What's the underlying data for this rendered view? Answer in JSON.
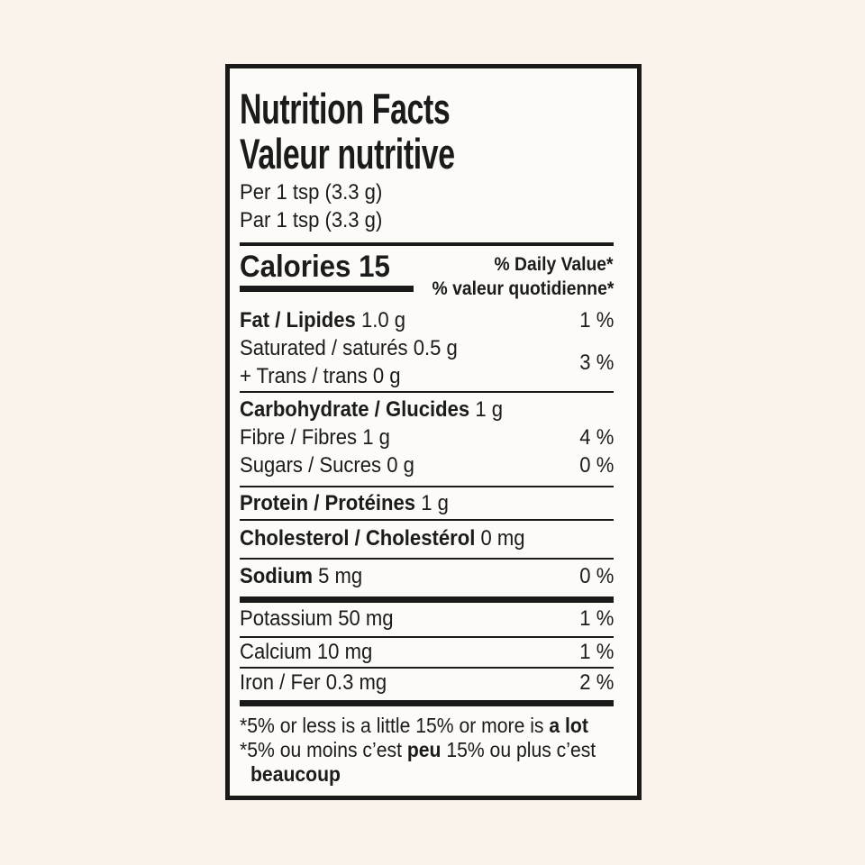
{
  "colors": {
    "page_background": "#faf3ec",
    "label_background": "#fcfbf7",
    "ink": "#1a1a1a"
  },
  "header": {
    "title_en": "Nutrition Facts",
    "title_fr": "Valeur nutritive",
    "serving_en": "Per 1 tsp (3.3 g)",
    "serving_fr": "Par 1 tsp (3.3 g)"
  },
  "calories": {
    "label": "Calories 15",
    "dv_header_en": "% Daily Value*",
    "dv_header_fr": "% valeur quotidienne*"
  },
  "rows": [
    {
      "bold": "Fat / Lipides",
      "rest": " 1.0 g",
      "dv": "1 %"
    },
    {
      "line1": "Saturated / saturés 0.5 g",
      "line2": "+ Trans / trans 0 g",
      "dv": "3 %"
    },
    {
      "bold": "Carbohydrate / Glucides",
      "rest": " 1 g",
      "dv": ""
    },
    {
      "bold": "",
      "rest": "Fibre / Fibres 1 g",
      "dv": "4 %"
    },
    {
      "bold": "",
      "rest": "Sugars / Sucres 0 g",
      "dv": "0 %"
    },
    {
      "bold": "Protein / Protéines",
      "rest": " 1 g",
      "dv": ""
    },
    {
      "bold": "Cholesterol / Cholestérol",
      "rest": " 0 mg",
      "dv": ""
    },
    {
      "bold": "Sodium",
      "rest": " 5 mg",
      "dv": "0 %"
    },
    {
      "bold": "",
      "rest": "Potassium 50 mg",
      "dv": "1 %"
    },
    {
      "bold": "",
      "rest": "Calcium 10 mg",
      "dv": "1 %"
    },
    {
      "bold": "",
      "rest": "Iron / Fer 0.3 mg",
      "dv": "2 %"
    }
  ],
  "footnote": {
    "en_regular": "*5% or less is a little 15% or more is ",
    "en_bold": "a lot",
    "fr_regular_1": "*5% ou moins c’est ",
    "fr_bold": "peu",
    "fr_regular_2": " 15% ou plus c’est",
    "fr_bold_2": "beaucoup"
  }
}
